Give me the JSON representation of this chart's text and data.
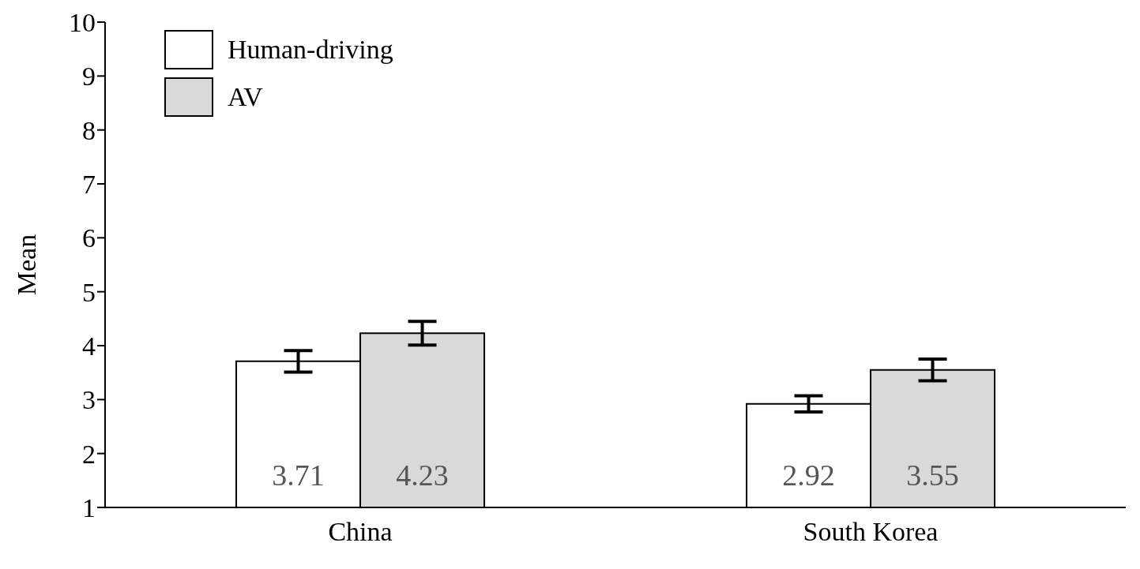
{
  "chart_data": {
    "type": "bar",
    "ylabel": "Mean",
    "categories": [
      "China",
      "South Korea"
    ],
    "series": [
      {
        "name": "Human-driving",
        "color": "#ffffff",
        "values": [
          3.71,
          2.92
        ],
        "errors": [
          0.2,
          0.15
        ]
      },
      {
        "name": "AV",
        "color": "#d9d9d9",
        "values": [
          4.23,
          3.55
        ],
        "errors": [
          0.22,
          0.2
        ]
      }
    ],
    "ylim": [
      1,
      10
    ],
    "yticks": [
      1,
      2,
      3,
      4,
      5,
      6,
      7,
      8,
      9,
      10
    ],
    "grid": false,
    "legend": "top left",
    "data_labels": true
  }
}
